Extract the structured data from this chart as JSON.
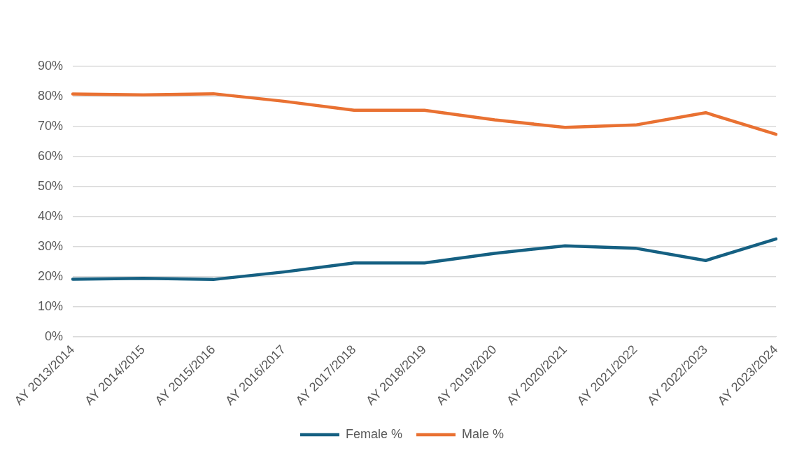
{
  "chart_data": {
    "type": "line",
    "categories": [
      "AY 2013/2014",
      "AY 2014/2015",
      "AY 2015/2016",
      "AY 2016/2017",
      "AY 2017/2018",
      "AY 2018/2019",
      "AY 2019/2020",
      "AY 2020/2021",
      "AY 2021/2022",
      "AY 2022/2023",
      "AY 2023/2024"
    ],
    "series": [
      {
        "name": "Female %",
        "color": "#156082",
        "values": [
          19.2,
          19.5,
          19.1,
          21.6,
          24.6,
          24.6,
          27.8,
          30.3,
          29.5,
          25.4,
          32.6
        ]
      },
      {
        "name": "Male %",
        "color": "#e97132",
        "values": [
          80.8,
          80.5,
          80.9,
          78.4,
          75.4,
          75.4,
          72.2,
          69.7,
          70.5,
          74.6,
          67.4
        ]
      }
    ],
    "ylim": [
      0,
      90
    ],
    "yticks": [
      {
        "value": 0,
        "label": "0%"
      },
      {
        "value": 10,
        "label": "10%"
      },
      {
        "value": 20,
        "label": "20%"
      },
      {
        "value": 30,
        "label": "30%"
      },
      {
        "value": 40,
        "label": "40%"
      },
      {
        "value": 50,
        "label": "50%"
      },
      {
        "value": 60,
        "label": "60%"
      },
      {
        "value": 70,
        "label": "70%"
      },
      {
        "value": 80,
        "label": "80%"
      },
      {
        "value": 90,
        "label": "90%"
      }
    ],
    "grid": "y",
    "legend": "bottom",
    "marker": "none",
    "line_style": "solid"
  }
}
